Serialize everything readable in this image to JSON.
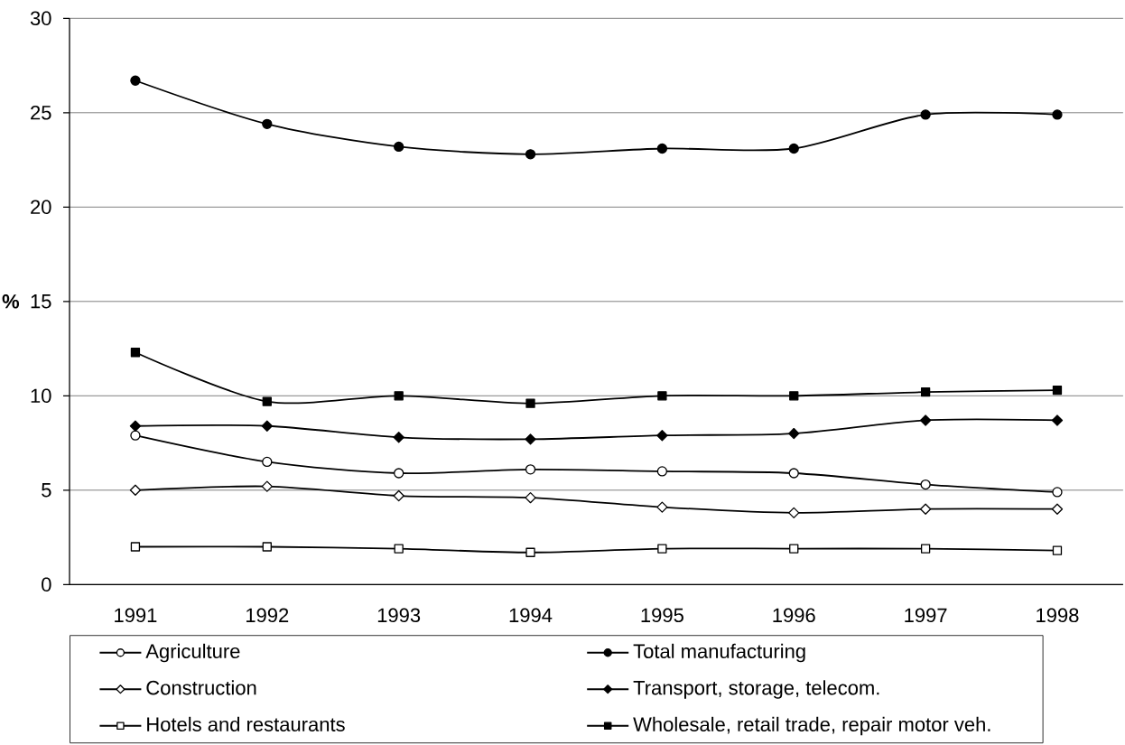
{
  "chart_data": {
    "type": "line",
    "ylabel": "%",
    "categories": [
      "1991",
      "1992",
      "1993",
      "1994",
      "1995",
      "1996",
      "1997",
      "1998"
    ],
    "ylim": [
      0,
      30
    ],
    "yticks": [
      0,
      5,
      10,
      15,
      20,
      25,
      30
    ],
    "grid": "y",
    "legend": "bottom",
    "line_style": "solid",
    "series": [
      {
        "name": "Agriculture",
        "color": "#000000",
        "marker": "circle",
        "colors": [
          "#ffffff",
          "#ffffff",
          "#ffffff",
          "#ffffff",
          "#ffffff",
          "#ffffff",
          "#ffffff",
          "#ffffff"
        ],
        "values": [
          7.9,
          6.5,
          5.9,
          6.1,
          6.0,
          5.9,
          5.3,
          4.9
        ]
      },
      {
        "name": "Total manufacturing",
        "color": "#000000",
        "marker": "circle",
        "values": [
          26.7,
          24.4,
          23.2,
          22.8,
          23.1,
          23.1,
          24.9,
          24.9
        ]
      },
      {
        "name": "Construction",
        "color": "#000000",
        "marker": "diamond",
        "colors": [
          "#ffffff",
          "#ffffff",
          "#ffffff",
          "#ffffff",
          "#ffffff",
          "#ffffff",
          "#ffffff",
          "#ffffff"
        ],
        "values": [
          5.0,
          5.2,
          4.7,
          4.6,
          4.1,
          3.8,
          4.0,
          4.0
        ]
      },
      {
        "name": "Transport, storage, telecom.",
        "color": "#000000",
        "marker": "diamond",
        "values": [
          8.4,
          8.4,
          7.8,
          7.7,
          7.9,
          8.0,
          8.7,
          8.7
        ]
      },
      {
        "name": "Hotels and restaurants",
        "color": "#000000",
        "marker": "square",
        "colors": [
          "#ffffff",
          "#ffffff",
          "#ffffff",
          "#ffffff",
          "#ffffff",
          "#ffffff",
          "#ffffff",
          "#ffffff"
        ],
        "values": [
          2.0,
          2.0,
          1.9,
          1.7,
          1.9,
          1.9,
          1.9,
          1.8
        ]
      },
      {
        "name": "Wholesale, retail trade, repair motor veh.",
        "color": "#000000",
        "marker": "square",
        "values": [
          12.3,
          9.7,
          10.0,
          9.6,
          10.0,
          10.0,
          10.2,
          10.3
        ]
      }
    ]
  }
}
